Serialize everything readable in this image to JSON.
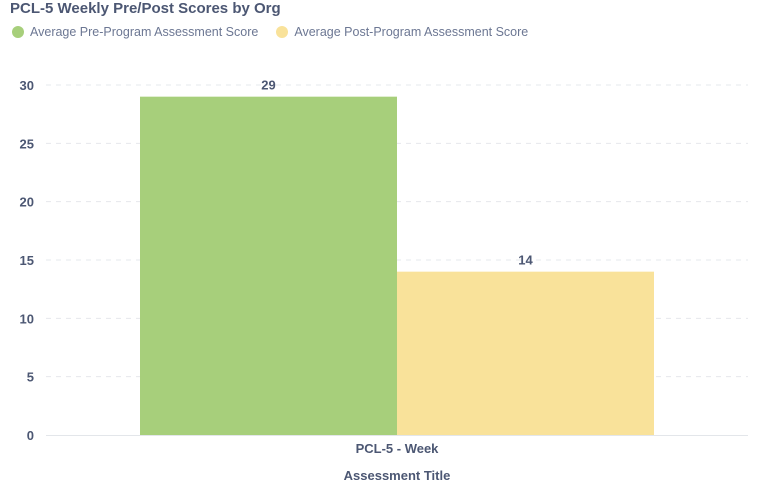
{
  "chart_data": {
    "type": "bar",
    "title": "PCL-5 Weekly Pre/Post Scores by Org",
    "categories": [
      "PCL-5 - Week"
    ],
    "series": [
      {
        "name": "Average Pre-Program Assessment Score",
        "values": [
          29
        ],
        "color": "#a7cf7b"
      },
      {
        "name": "Average Post-Program Assessment Score",
        "values": [
          14
        ],
        "color": "#f9e29a"
      }
    ],
    "xlabel": "Assessment Title",
    "ylabel": "",
    "ylim": [
      0,
      30
    ],
    "yticks": [
      0,
      5,
      10,
      15,
      20,
      25,
      30
    ],
    "grid": true,
    "legend_position": "top-left"
  },
  "colors": {
    "text": "#4c5773",
    "legend_text": "#6c7793",
    "grid": "#e6e8ec"
  }
}
